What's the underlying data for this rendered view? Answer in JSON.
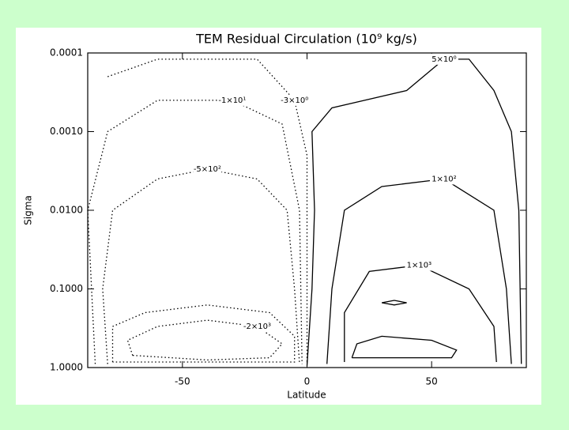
{
  "chart_data": {
    "type": "contour",
    "title": "TEM Residual Circulation (10⁹ kg/s)",
    "x_label": "Latitude",
    "y_label": "Sigma",
    "xlim": [
      -88,
      88
    ],
    "xticks": [
      -50,
      0,
      50
    ],
    "ylim": [
      1,
      0.0001
    ],
    "log_y": true,
    "yticks": [
      {
        "value": 0.0001,
        "label": "0.0001"
      },
      {
        "value": 0.001,
        "label": "0.0010"
      },
      {
        "value": 0.01,
        "label": "0.0100"
      },
      {
        "value": 0.1,
        "label": "0.1000"
      },
      {
        "value": 1,
        "label": "1.0000"
      }
    ],
    "contours": [
      {
        "label": "-2×10³",
        "style": "dotted",
        "x": [
          -70,
          -72,
          -60,
          -40,
          -20,
          -10,
          -15,
          -40,
          -70
        ],
        "y": [
          0.7,
          0.45,
          0.3,
          0.25,
          0.3,
          0.5,
          0.75,
          0.8,
          0.7
        ]
      },
      {
        "style": "dotted",
        "x": [
          -78,
          -78,
          -65,
          -40,
          -15,
          -5,
          -5,
          -78
        ],
        "y": [
          0.85,
          0.3,
          0.2,
          0.16,
          0.2,
          0.4,
          0.85,
          0.85
        ]
      },
      {
        "label": "-5×10²",
        "style": "dotted",
        "x": [
          -80,
          -82,
          -78,
          -60,
          -40,
          -20,
          -8,
          -5,
          -3
        ],
        "y": [
          0.9,
          0.1,
          0.01,
          0.004,
          0.003,
          0.004,
          0.01,
          0.1,
          0.9
        ]
      },
      {
        "label": "-1×10¹",
        "style": "dotted",
        "x": [
          -85,
          -88,
          -80,
          -60,
          -30,
          -10,
          -3,
          -2
        ],
        "y": [
          0.9,
          0.01,
          0.001,
          0.0004,
          0.0004,
          0.0008,
          0.01,
          0.9
        ]
      },
      {
        "label": "-3×10⁰",
        "style": "dotted",
        "x": [
          -80,
          -60,
          -20,
          -5,
          0,
          0
        ],
        "y": [
          0.0002,
          0.00012,
          0.00012,
          0.0004,
          0.002,
          0.9
        ]
      },
      {
        "label": "5×10⁰",
        "style": "solid",
        "x": [
          0,
          2,
          3,
          2,
          10,
          40,
          55,
          65,
          75,
          82,
          85,
          86
        ],
        "y": [
          0.95,
          0.1,
          0.01,
          0.001,
          0.0005,
          0.0003,
          0.00012,
          0.00012,
          0.0003,
          0.001,
          0.01,
          0.9
        ]
      },
      {
        "label": "1×10²",
        "style": "solid",
        "x": [
          8,
          10,
          15,
          30,
          55,
          75,
          80,
          82
        ],
        "y": [
          0.9,
          0.1,
          0.01,
          0.005,
          0.004,
          0.01,
          0.1,
          0.9
        ]
      },
      {
        "label": "1×10³",
        "style": "solid",
        "x": [
          15,
          15,
          25,
          45,
          65,
          75,
          76
        ],
        "y": [
          0.85,
          0.2,
          0.06,
          0.05,
          0.1,
          0.3,
          0.85
        ]
      },
      {
        "style": "solid",
        "x": [
          18,
          20,
          30,
          50,
          60,
          58,
          18
        ],
        "y": [
          0.75,
          0.5,
          0.4,
          0.45,
          0.6,
          0.75,
          0.75
        ]
      },
      {
        "style": "solid",
        "x": [
          30,
          35,
          40,
          35,
          30
        ],
        "y": [
          0.15,
          0.14,
          0.15,
          0.16,
          0.15
        ]
      }
    ]
  }
}
